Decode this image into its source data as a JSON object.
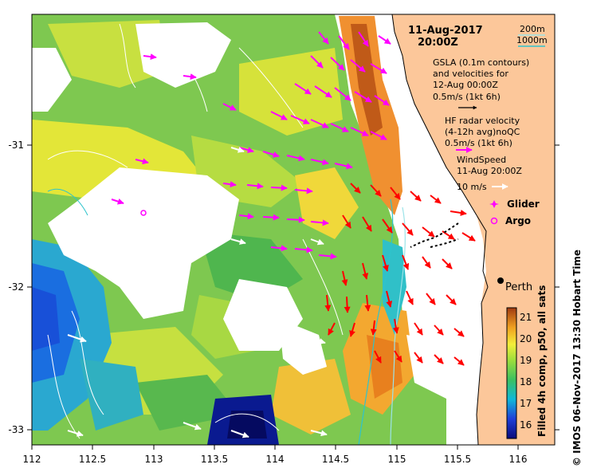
{
  "header": {
    "date": "11-Aug-2017",
    "time": "20:00Z"
  },
  "depth_legend": {
    "d1": "200m",
    "d2": "1000m",
    "d1_color": "#9be3e8",
    "d2_color": "#2ec4cc"
  },
  "legend": {
    "gsla_line1": "GSLA (0.1m contours)",
    "gsla_line2": "and velocities for",
    "gsla_line3": "12-Aug 00:00Z",
    "gsla_scale": "0.5m/s (1kt 6h)",
    "hf_line1": "HF radar velocity",
    "hf_line2": "(4-12h avg)noQC",
    "hf_scale": "0.5m/s (1kt 6h)",
    "wind_line1": "WindSpeed",
    "wind_line2": "11-Aug 20:00Z",
    "wind_scale": "10 m/s",
    "glider": "Glider",
    "argo": "Argo"
  },
  "place": {
    "perth": "Perth"
  },
  "axes": {
    "x_ticks": [
      "112",
      "112.5",
      "113",
      "113.5",
      "114",
      "114.5",
      "115",
      "115.5",
      "116"
    ],
    "y_ticks": [
      "-31",
      "-32",
      "-33"
    ]
  },
  "colorbar": {
    "label": "Filled 4h comp, p50, all sats",
    "ticks": [
      "21",
      "20",
      "19",
      "18",
      "17",
      "16"
    ]
  },
  "credit": "© IMOS 06-Nov-2017 13:30 Hobart Time",
  "colors": {
    "land": "#fcc79a",
    "gsla_arrow": "#ff00ff",
    "hf_arrow": "#ff0000",
    "wind_arrow": "#ffffff",
    "glider_track": "#000000"
  }
}
